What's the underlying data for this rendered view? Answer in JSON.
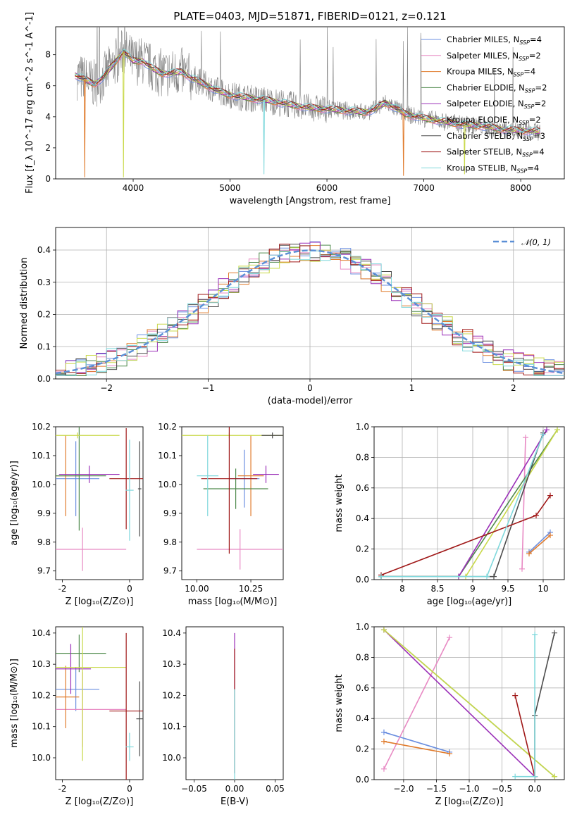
{
  "colors": {
    "spectrum": "#808080",
    "normal_curve": "#5b8fd6",
    "models": [
      "#6b8fe0",
      "#e88ac4",
      "#e07b2c",
      "#4f8a4c",
      "#9b30b8",
      "#c9d94a",
      "#4c4c4c",
      "#a01818",
      "#7fd8dc"
    ]
  },
  "chart_data": [
    {
      "id": "spectrum",
      "type": "line",
      "title": "PLATE=0403, MJD=51871, FIBERID=0121, z=0.121",
      "xlabel": "wavelength [Angstrom, rest frame]",
      "ylabel": "Flux [f_λ 10^-17 erg cm^-2 s^-1 A^-1]",
      "xlim": [
        3200,
        8450
      ],
      "ylim": [
        0,
        9.8
      ],
      "xticks": [
        "4000",
        "5000",
        "6000",
        "7000",
        "8000"
      ],
      "yticks": [
        "0",
        "2",
        "4",
        "6",
        "8"
      ],
      "legend_position": "top-right",
      "legend": [
        {
          "model": "Chabrier MILES",
          "n_ssp": "4"
        },
        {
          "model": "Salpeter MILES",
          "n_ssp": "2"
        },
        {
          "model": "Kroupa MILES",
          "n_ssp": "4"
        },
        {
          "model": "Chabrier ELODIE",
          "n_ssp": "2"
        },
        {
          "model": "Salpeter ELODIE",
          "n_ssp": "2"
        },
        {
          "model": "Kroupa ELODIE",
          "n_ssp": "2"
        },
        {
          "model": "Chabrier STELIB",
          "n_ssp": "3"
        },
        {
          "model": "Salpeter STELIB",
          "n_ssp": "4"
        },
        {
          "model": "Kroupa STELIB",
          "n_ssp": "4"
        }
      ],
      "continuum": [
        [
          3400,
          6.7
        ],
        [
          3500,
          6.4
        ],
        [
          3600,
          6.1
        ],
        [
          3700,
          6.6
        ],
        [
          3800,
          7.4
        ],
        [
          3900,
          8.2
        ],
        [
          4000,
          7.6
        ],
        [
          4100,
          7.6
        ],
        [
          4200,
          7.1
        ],
        [
          4300,
          6.8
        ],
        [
          4400,
          6.8
        ],
        [
          4500,
          6.9
        ],
        [
          4600,
          6.5
        ],
        [
          4700,
          6.2
        ],
        [
          4800,
          5.9
        ],
        [
          4900,
          5.6
        ],
        [
          5000,
          5.4
        ],
        [
          5200,
          5.2
        ],
        [
          5400,
          5.05
        ],
        [
          5600,
          4.8
        ],
        [
          5800,
          4.6
        ],
        [
          6000,
          4.5
        ],
        [
          6200,
          4.4
        ],
        [
          6400,
          4.3
        ],
        [
          6500,
          4.5
        ],
        [
          6600,
          4.9
        ],
        [
          6700,
          4.6
        ],
        [
          6800,
          4.2
        ],
        [
          7000,
          3.9
        ],
        [
          7200,
          3.7
        ],
        [
          7400,
          3.5
        ],
        [
          7600,
          3.4
        ],
        [
          7800,
          3.2
        ],
        [
          8000,
          3.1
        ],
        [
          8200,
          3.05
        ]
      ],
      "deep_dips": [
        [
          3500,
          0.1
        ],
        [
          3900,
          0.1
        ],
        [
          5350,
          0.3
        ],
        [
          6790,
          0.2
        ],
        [
          7420,
          0.3
        ]
      ]
    },
    {
      "id": "residual_histogram",
      "type": "step",
      "xlabel": "(data-model)/error",
      "ylabel": "Normed distribution",
      "xlim": [
        -2.5,
        2.5
      ],
      "ylim": [
        0,
        0.47
      ],
      "xticks": [
        "−2",
        "−1",
        "0",
        "1",
        "2"
      ],
      "yticks": [
        "0.0",
        "0.1",
        "0.2",
        "0.3",
        "0.4"
      ],
      "grid": true,
      "legend_position": "top-right",
      "reference_label": "𝒩(0, 1)",
      "reference_mean": 0,
      "reference_sigma": 1,
      "bin_width": 0.1
    },
    {
      "id": "age_vs_z",
      "type": "errorbar",
      "xlabel": "Z [log₁₀(Z/Z⊙)]",
      "ylabel": "age  [log₁₀(age/yr)]",
      "xlim": [
        -2.2,
        0.4
      ],
      "ylim": [
        9.67,
        10.2
      ],
      "xticks": [
        -2,
        0
      ],
      "yticks": [
        9.7,
        9.8,
        9.9,
        10.0,
        10.1,
        10.2
      ],
      "points": [
        {
          "series": 0,
          "x": -1.6,
          "y": 10.02,
          "xerr": 0.7,
          "yerr": 0.13
        },
        {
          "series": 1,
          "x": -1.4,
          "y": 9.775,
          "xerr": 1.3,
          "yerr": 0.075
        },
        {
          "series": 2,
          "x": -1.9,
          "y": 10.03,
          "xerr": 0.4,
          "yerr": 0.14
        },
        {
          "series": 3,
          "x": -1.5,
          "y": 10.03,
          "xerr": 0.8,
          "yerr": 0.19
        },
        {
          "series": 4,
          "x": -1.2,
          "y": 10.035,
          "xerr": 0.9,
          "yerr": 0.03
        },
        {
          "series": 5,
          "x": -1.55,
          "y": 10.17,
          "xerr": 1.25,
          "yerr": 0.01
        },
        {
          "series": 6,
          "x": 0.3,
          "y": 9.985,
          "xerr": 0.05,
          "yerr": 0.165
        },
        {
          "series": 7,
          "x": -0.1,
          "y": 10.02,
          "xerr": 0.5,
          "yerr": 0.175
        },
        {
          "series": 8,
          "x": 0.0,
          "y": 9.98,
          "xerr": 0.12,
          "yerr": 0.175
        }
      ]
    },
    {
      "id": "age_vs_mass",
      "type": "errorbar",
      "xlabel": "mass [log₁₀(M/M⊙)]",
      "ylabel": "",
      "xlim": [
        9.93,
        10.4
      ],
      "ylim": [
        9.67,
        10.2
      ],
      "xticks": [
        "10.00",
        "10.25"
      ],
      "yticks": [
        9.7,
        9.8,
        9.9,
        10.0,
        10.1,
        10.2
      ],
      "points": [
        {
          "series": 0,
          "x": 10.22,
          "y": 10.02,
          "xerr": 0.07,
          "yerr": 0.1
        },
        {
          "series": 1,
          "x": 10.2,
          "y": 9.775,
          "xerr": 0.2,
          "yerr": 0.07
        },
        {
          "series": 2,
          "x": 10.25,
          "y": 10.03,
          "xerr": 0.06,
          "yerr": 0.14
        },
        {
          "series": 3,
          "x": 10.18,
          "y": 9.985,
          "xerr": 0.15,
          "yerr": 0.07
        },
        {
          "series": 4,
          "x": 10.32,
          "y": 10.035,
          "xerr": 0.06,
          "yerr": 0.03
        },
        {
          "series": 5,
          "x": 10.15,
          "y": 10.17,
          "xerr": 0.25,
          "yerr": 0.01
        },
        {
          "series": 6,
          "x": 10.35,
          "y": 10.17,
          "xerr": 0.05,
          "yerr": 0.01
        },
        {
          "series": 7,
          "x": 10.15,
          "y": 10.02,
          "xerr": 0.13,
          "yerr": 0.26
        },
        {
          "series": 8,
          "x": 10.05,
          "y": 10.03,
          "xerr": 0.05,
          "yerr": 0.14
        }
      ]
    },
    {
      "id": "weight_vs_age",
      "type": "line",
      "xlabel": "age  [log₁₀(age/yr)]",
      "ylabel": "mass weight",
      "xlim": [
        7.6,
        10.3
      ],
      "ylim": [
        0,
        1.0
      ],
      "xticks": [
        8.0,
        8.5,
        9.0,
        9.5,
        10.0
      ],
      "yticks": [
        0.0,
        0.2,
        0.4,
        0.6,
        0.8,
        1.0
      ],
      "grid": true,
      "series": [
        {
          "series": 0,
          "points": [
            [
              9.8,
              0.18
            ],
            [
              10.1,
              0.31
            ]
          ]
        },
        {
          "series": 1,
          "points": [
            [
              9.7,
              0.07
            ],
            [
              9.75,
              0.93
            ]
          ]
        },
        {
          "series": 2,
          "points": [
            [
              9.8,
              0.17
            ],
            [
              10.1,
              0.29
            ]
          ]
        },
        {
          "series": 3,
          "points": [
            [
              7.7,
              0.02
            ],
            [
              8.8,
              0.02
            ],
            [
              10.2,
              0.98
            ]
          ]
        },
        {
          "series": 4,
          "points": [
            [
              7.7,
              0.02
            ],
            [
              8.8,
              0.02
            ],
            [
              10.05,
              0.98
            ]
          ]
        },
        {
          "series": 5,
          "points": [
            [
              7.7,
              0.02
            ],
            [
              8.9,
              0.02
            ],
            [
              10.2,
              0.98
            ]
          ]
        },
        {
          "series": 6,
          "points": [
            [
              7.7,
              0.02
            ],
            [
              9.3,
              0.02
            ],
            [
              10.0,
              0.96
            ]
          ]
        },
        {
          "series": 7,
          "points": [
            [
              7.7,
              0.03
            ],
            [
              9.9,
              0.42
            ],
            [
              10.1,
              0.55
            ]
          ]
        },
        {
          "series": 8,
          "points": [
            [
              7.7,
              0.02
            ],
            [
              9.2,
              0.02
            ],
            [
              10.0,
              0.95
            ]
          ]
        }
      ]
    },
    {
      "id": "mass_vs_z",
      "type": "errorbar",
      "xlabel": "Z [log₁₀(Z/Z⊙)]",
      "ylabel": "mass [log₁₀(M/M⊙)]",
      "xlim": [
        -2.2,
        0.4
      ],
      "ylim": [
        9.93,
        10.42
      ],
      "xticks": [
        -2,
        0
      ],
      "yticks": [
        10.0,
        10.1,
        10.2,
        10.3,
        10.4
      ],
      "points": [
        {
          "series": 0,
          "x": -1.6,
          "y": 10.22,
          "xerr": 0.7,
          "yerr": 0.07
        },
        {
          "series": 1,
          "x": -1.4,
          "y": 10.155,
          "xerr": 1.3,
          "yerr": 0.12
        },
        {
          "series": 2,
          "x": -1.9,
          "y": 10.195,
          "xerr": 0.4,
          "yerr": 0.1
        },
        {
          "series": 3,
          "x": -1.5,
          "y": 10.335,
          "xerr": 0.8,
          "yerr": 0.06
        },
        {
          "series": 4,
          "x": -1.75,
          "y": 10.285,
          "xerr": 0.6,
          "yerr": 0.08
        },
        {
          "series": 5,
          "x": -1.4,
          "y": 10.29,
          "xerr": 1.3,
          "yerr": 0.3
        },
        {
          "series": 6,
          "x": 0.3,
          "y": 10.125,
          "xerr": 0.1,
          "yerr": 0.12
        },
        {
          "series": 7,
          "x": -0.1,
          "y": 10.15,
          "xerr": 0.5,
          "yerr": 0.25
        },
        {
          "series": 8,
          "x": 0.0,
          "y": 10.035,
          "xerr": 0.12,
          "yerr": 0.045
        }
      ]
    },
    {
      "id": "mass_vs_ebv",
      "type": "errorbar",
      "xlabel": "E(B-V)",
      "ylabel": "",
      "xlim": [
        -0.06,
        0.06
      ],
      "ylim": [
        9.93,
        10.42
      ],
      "xticks": [
        "−0.05",
        "0.00",
        "0.05"
      ],
      "yticks": [
        10.0,
        10.1,
        10.2,
        10.3,
        10.4
      ],
      "points": [
        {
          "series": 4,
          "x": 0.0,
          "y": 10.31,
          "xerr": 0.0,
          "yerr": 0.09
        },
        {
          "series": 7,
          "x": 0.0,
          "y": 10.15,
          "xerr": 0.0,
          "yerr": 0.2
        },
        {
          "series": 8,
          "x": 0.0,
          "y": 10.05,
          "xerr": 0.0,
          "yerr": 0.17
        }
      ]
    },
    {
      "id": "weight_vs_z",
      "type": "line",
      "xlabel": "Z [log₁₀(Z/Z⊙)]",
      "ylabel": "mass weight",
      "xlim": [
        -2.45,
        0.45
      ],
      "ylim": [
        0,
        1.0
      ],
      "xticks": [
        "−2.0",
        "−1.5",
        "−1.0",
        "−0.5",
        "0.0"
      ],
      "yticks": [
        "0.0",
        "0.2",
        "0.4",
        "0.6",
        "0.8",
        "1.0"
      ],
      "grid": true,
      "series": [
        {
          "series": 0,
          "points": [
            [
              -2.3,
              0.31
            ],
            [
              -1.3,
              0.18
            ]
          ]
        },
        {
          "series": 1,
          "points": [
            [
              -2.3,
              0.07
            ],
            [
              -1.3,
              0.93
            ]
          ]
        },
        {
          "series": 2,
          "points": [
            [
              -2.3,
              0.25
            ],
            [
              -1.3,
              0.17
            ]
          ]
        },
        {
          "series": 3,
          "points": [
            [
              -2.3,
              0.98
            ],
            [
              0.3,
              0.02
            ]
          ]
        },
        {
          "series": 4,
          "points": [
            [
              -2.3,
              0.98
            ],
            [
              0.0,
              0.02
            ]
          ]
        },
        {
          "series": 5,
          "points": [
            [
              -2.3,
              0.98
            ],
            [
              0.3,
              0.02
            ]
          ]
        },
        {
          "series": 6,
          "points": [
            [
              0.0,
              0.02
            ],
            [
              0.0,
              0.42
            ],
            [
              0.3,
              0.96
            ]
          ]
        },
        {
          "series": 7,
          "points": [
            [
              -0.3,
              0.55
            ],
            [
              0.0,
              0.02
            ]
          ]
        },
        {
          "series": 8,
          "points": [
            [
              -0.3,
              0.02
            ],
            [
              0.0,
              0.02
            ],
            [
              0.0,
              0.95
            ]
          ]
        }
      ]
    }
  ]
}
